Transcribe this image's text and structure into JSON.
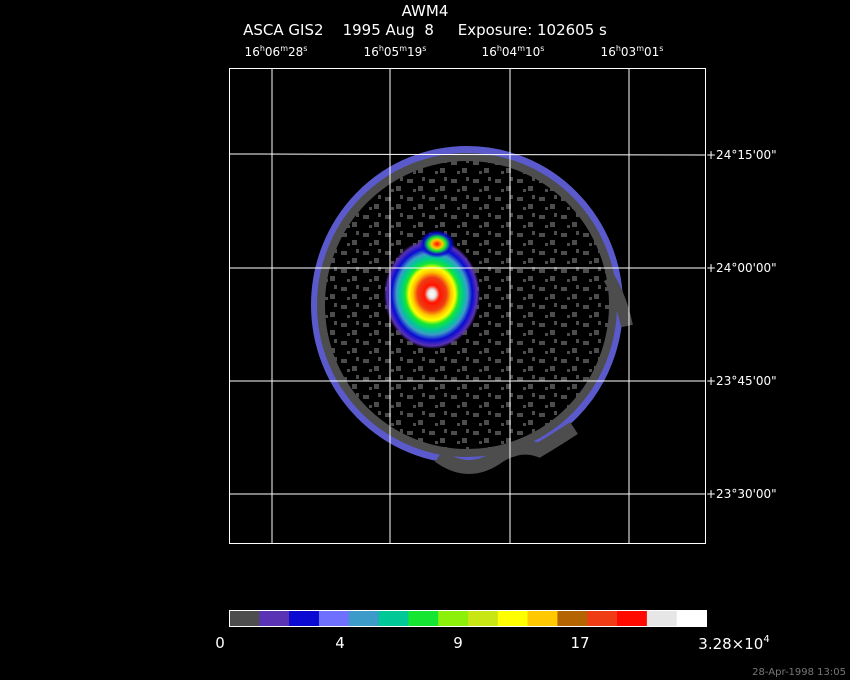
{
  "header": {
    "title": "AWM4",
    "subtitle": "ASCA GIS2    1995 Aug  8     Exposure: 102605 s"
  },
  "ra_ticks": [
    {
      "h": "16",
      "m": "06",
      "s": "28"
    },
    {
      "h": "16",
      "m": "05",
      "s": "19"
    },
    {
      "h": "16",
      "m": "04",
      "s": "10"
    },
    {
      "h": "16",
      "m": "03",
      "s": "01"
    }
  ],
  "dec_ticks": [
    {
      "text": "+24°15'00\""
    },
    {
      "text": "+24°00'00\""
    },
    {
      "text": "+23°45'00\""
    },
    {
      "text": "+23°30'00\""
    }
  ],
  "colorbar": {
    "colors": [
      "#4d4d4d",
      "#5a32b4",
      "#0a0ad2",
      "#7070ff",
      "#3c9bc8",
      "#00c896",
      "#14e632",
      "#8cf00a",
      "#c8e614",
      "#ffff00",
      "#ffc800",
      "#b46400",
      "#f03c14",
      "#ff0a00",
      "#e6e6e6",
      "#ffffff"
    ],
    "labels": [
      {
        "text": "0"
      },
      {
        "text": "4"
      },
      {
        "text": "9"
      },
      {
        "text": "17"
      },
      {
        "text": "3.28×10",
        "exp": "4"
      }
    ]
  },
  "timestamp": "28-Apr-1998 13:05"
}
